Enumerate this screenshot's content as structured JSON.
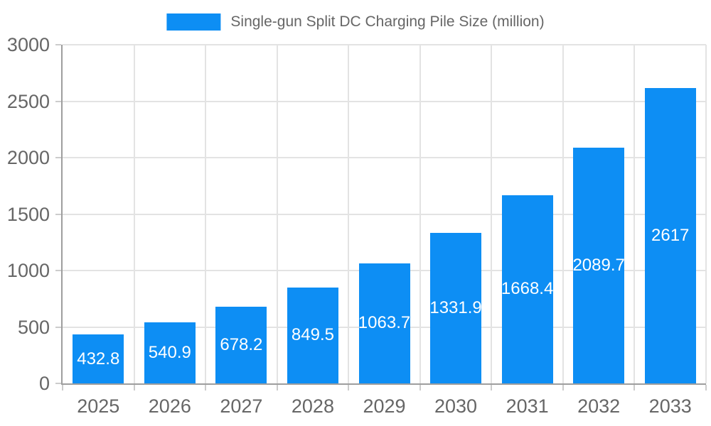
{
  "legend": {
    "label": "Single-gun Split DC Charging Pile Size (million)"
  },
  "colors": {
    "bar": "#0d8ef4",
    "text": "#666666",
    "grid": "#e3e3e3",
    "axis": "#9e9e9e",
    "tick": "#cccccc",
    "value_label": "#ffffff",
    "background": "#ffffff"
  },
  "chart_data": {
    "type": "bar",
    "title": "",
    "categories": [
      "2025",
      "2026",
      "2027",
      "2028",
      "2029",
      "2030",
      "2031",
      "2032",
      "2033"
    ],
    "values": [
      432.8,
      540.9,
      678.2,
      849.5,
      1063.7,
      1331.9,
      1668.4,
      2089.7,
      2617
    ],
    "series_name": "Single-gun Split DC Charging Pile Size (million)",
    "xlabel": "",
    "ylabel": "",
    "ylim": [
      0,
      3000
    ],
    "yticks": [
      0,
      500,
      1000,
      1500,
      2000,
      2500,
      3000
    ],
    "grid": true,
    "legend_position": "top-center",
    "value_labels": "inside-center-white"
  }
}
